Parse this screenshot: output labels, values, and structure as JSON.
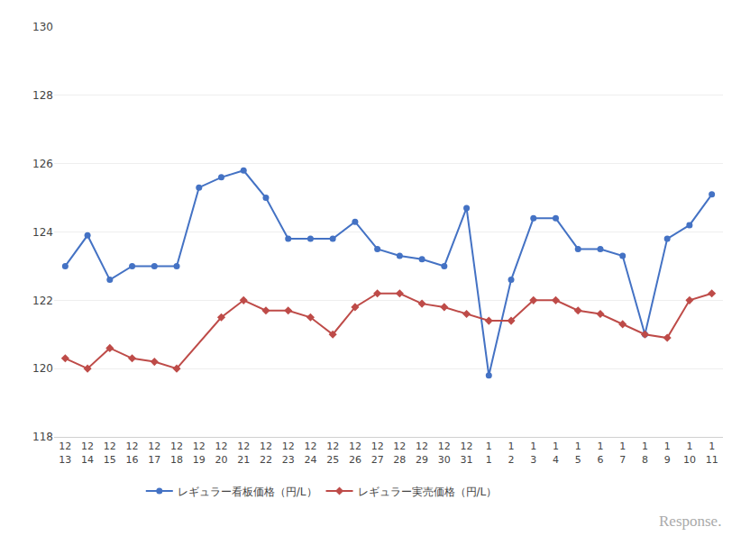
{
  "chart_data": {
    "type": "line",
    "categories": [
      "12\n13",
      "12\n14",
      "12\n15",
      "12\n16",
      "12\n17",
      "12\n18",
      "12\n19",
      "12\n20",
      "12\n21",
      "12\n22",
      "12\n23",
      "12\n24",
      "12\n25",
      "12\n26",
      "12\n27",
      "12\n28",
      "12\n29",
      "12\n30",
      "12\n31",
      "1\n1",
      "1\n2",
      "1\n3",
      "1\n4",
      "1\n5",
      "1\n6",
      "1\n7",
      "1\n8",
      "1\n9",
      "1\n10",
      "1\n11"
    ],
    "series": [
      {
        "name": "レギュラー看板価格（円/L）",
        "color": "#4472C4",
        "marker": "circle",
        "values": [
          123.0,
          123.9,
          122.6,
          123.0,
          123.0,
          123.0,
          125.3,
          125.6,
          125.8,
          125.0,
          123.8,
          123.8,
          123.8,
          124.3,
          123.5,
          123.3,
          123.2,
          123.0,
          124.7,
          119.8,
          122.6,
          124.4,
          124.4,
          123.5,
          123.5,
          123.3,
          121.0,
          123.8,
          124.2,
          125.1
        ]
      },
      {
        "name": "レギュラー実売価格（円/L）",
        "color": "#BE4B48",
        "marker": "diamond",
        "values": [
          120.3,
          120.0,
          120.6,
          120.3,
          120.2,
          120.0,
          null,
          121.5,
          122.0,
          121.7,
          121.7,
          121.5,
          121.0,
          121.8,
          122.2,
          122.2,
          121.9,
          121.8,
          121.6,
          121.4,
          121.4,
          122.0,
          122.0,
          121.7,
          121.6,
          121.3,
          121.0,
          120.9,
          122.0,
          122.2
        ]
      }
    ],
    "ylim": [
      118,
      130
    ],
    "yticks": [
      118,
      120,
      122,
      124,
      126,
      128,
      130
    ],
    "grid": true,
    "legend": "bottom",
    "annotations": [
      "Response."
    ]
  }
}
